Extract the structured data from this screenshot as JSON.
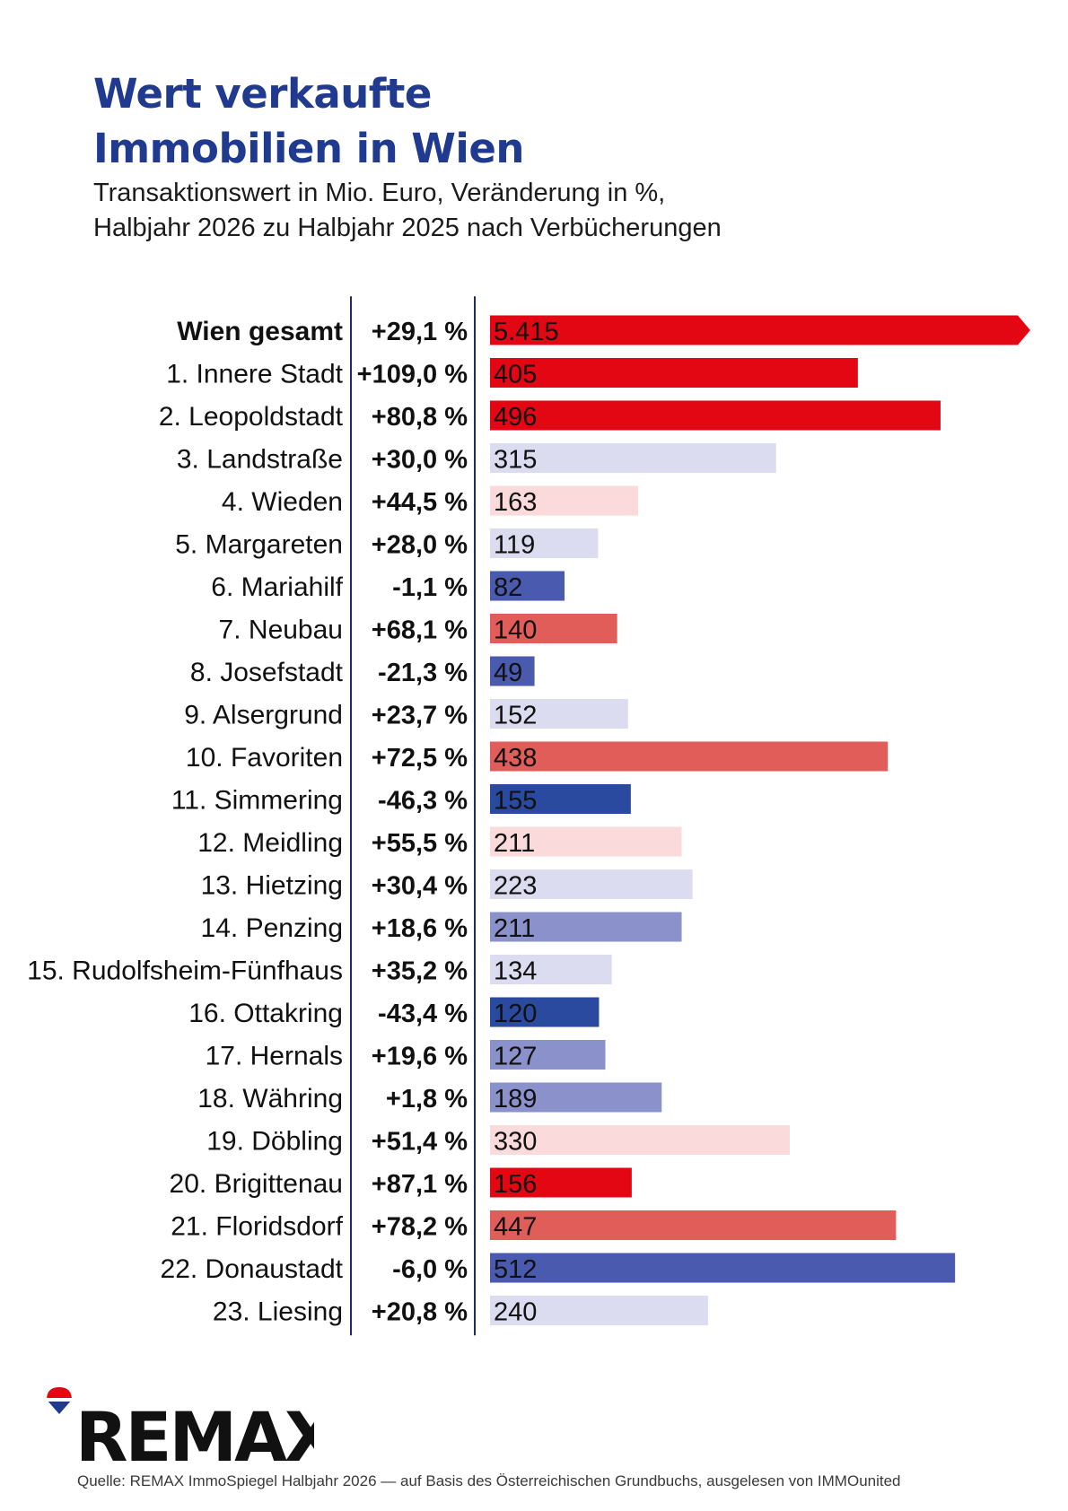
{
  "header": {
    "title_line1": "Wert verkaufte",
    "title_line2": "Immobilien in Wien",
    "subtitle_line1": "Transaktionswert in Mio. Euro, Veränderung in %,",
    "subtitle_line2": "Halbjahr 2026 zu Halbjahr 2025 nach Verbücherungen"
  },
  "colors": {
    "title": "#1f3a8f",
    "divider": "#1e2d5c",
    "strong_red": "#e30613",
    "medium_red": "#e05d5a",
    "light_red": "#fadadb",
    "light_purple": "#dcdcf0",
    "medium_purple": "#8b91cb",
    "medium_blue": "#4a5aae",
    "strong_blue": "#2a4a9f"
  },
  "chart_data": {
    "type": "bar",
    "orientation": "horizontal",
    "value_unit": "Mio. Euro",
    "categories": [
      "Wien gesamt",
      "1. Innere Stadt",
      "2. Leopoldstadt",
      "3. Landstraße",
      "4. Wieden",
      "5. Margareten",
      "6. Mariahilf",
      "7. Neubau",
      "8. Josefstadt",
      "9. Alsergrund",
      "10. Favoriten",
      "11. Simmering",
      "12. Meidling",
      "13. Hietzing",
      "14. Penzing",
      "15. Rudolfsheim-Fünfhaus",
      "16. Ottakring",
      "17. Hernals",
      "18. Währing",
      "19. Döbling",
      "20. Brigittenau",
      "21. Floridsdorf",
      "22. Donaustadt",
      "23. Liesing"
    ],
    "values": [
      5415,
      405,
      496,
      315,
      163,
      119,
      82,
      140,
      49,
      152,
      438,
      155,
      211,
      223,
      211,
      134,
      120,
      127,
      189,
      330,
      156,
      447,
      512,
      240
    ],
    "value_labels": [
      "5.415",
      "405",
      "496",
      "315",
      "163",
      "119",
      "82",
      "140",
      "49",
      "152",
      "438",
      "155",
      "211",
      "223",
      "211",
      "134",
      "120",
      "127",
      "189",
      "330",
      "156",
      "447",
      "512",
      "240"
    ],
    "change_labels": [
      "+29,1 %",
      "+109,0 %",
      "+80,8 %",
      "+30,0 %",
      "+44,5 %",
      "+28,0 %",
      "-1,1 %",
      "+68,1 %",
      "-21,3 %",
      "+23,7 %",
      "+72,5 %",
      "-46,3 %",
      "+55,5 %",
      "+30,4 %",
      "+18,6 %",
      "+35,2 %",
      "-43,4 %",
      "+19,6 %",
      "+1,8 %",
      "+51,4 %",
      "+87,1 %",
      "+78,2 %",
      "-6,0 %",
      "+20,8 %"
    ],
    "bar_colors": [
      "#e30613",
      "#e30613",
      "#e30613",
      "#dcdcf0",
      "#fadadb",
      "#dcdcf0",
      "#4a5aae",
      "#e05d5a",
      "#4a5aae",
      "#dcdcf0",
      "#e05d5a",
      "#2a4a9f",
      "#fadadb",
      "#dcdcf0",
      "#8b91cb",
      "#dcdcf0",
      "#2a4a9f",
      "#8b91cb",
      "#8b91cb",
      "#fadadb",
      "#e30613",
      "#e05d5a",
      "#4a5aae",
      "#dcdcf0"
    ],
    "bold_categories": [
      "Wien gesamt"
    ],
    "total_bar_truncated": true,
    "xlim": [
      0,
      560
    ]
  },
  "footer": {
    "logo_text": "REMAX",
    "source": "Quelle: REMAX ImmoSpiegel Halbjahr 2026 — auf Basis des Österreichischen Grundbuchs, ausgelesen von IMMOunited"
  }
}
